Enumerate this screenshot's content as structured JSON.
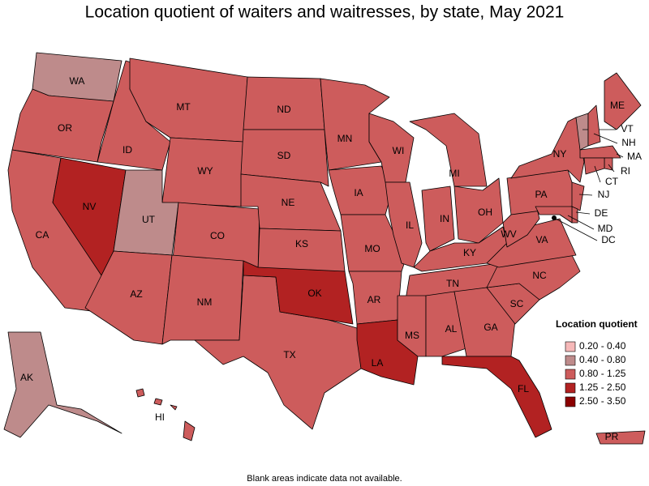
{
  "title": "Location quotient of waiters and waitresses, by state, May 2021",
  "footnote": "Blank areas indicate data not available.",
  "legend": {
    "title": "Location quotient",
    "items": [
      {
        "label": "0.20 - 0.40",
        "color": "#f6b8b8"
      },
      {
        "label": "0.40 - 0.80",
        "color": "#be8b8b"
      },
      {
        "label": "0.80 - 1.25",
        "color": "#cd5c5c"
      },
      {
        "label": "1.25 - 2.50",
        "color": "#b22222"
      },
      {
        "label": "2.50 - 3.50",
        "color": "#8b0000"
      }
    ]
  },
  "states": [
    {
      "label": "WA",
      "color": "#be8b8b"
    },
    {
      "label": "OR",
      "color": "#cd5c5c"
    },
    {
      "label": "CA",
      "color": "#cd5c5c"
    },
    {
      "label": "NV",
      "color": "#b22222"
    },
    {
      "label": "ID",
      "color": "#cd5c5c"
    },
    {
      "label": "MT",
      "color": "#cd5c5c"
    },
    {
      "label": "WY",
      "color": "#cd5c5c"
    },
    {
      "label": "UT",
      "color": "#be8b8b"
    },
    {
      "label": "CO",
      "color": "#cd5c5c"
    },
    {
      "label": "AZ",
      "color": "#cd5c5c"
    },
    {
      "label": "NM",
      "color": "#cd5c5c"
    },
    {
      "label": "ND",
      "color": "#cd5c5c"
    },
    {
      "label": "SD",
      "color": "#cd5c5c"
    },
    {
      "label": "NE",
      "color": "#cd5c5c"
    },
    {
      "label": "KS",
      "color": "#cd5c5c"
    },
    {
      "label": "TX",
      "color": "#cd5c5c"
    },
    {
      "label": "OK",
      "color": "#b22222"
    },
    {
      "label": "MN",
      "color": "#cd5c5c"
    },
    {
      "label": "IA",
      "color": "#cd5c5c"
    },
    {
      "label": "MO",
      "color": "#cd5c5c"
    },
    {
      "label": "AR",
      "color": "#cd5c5c"
    },
    {
      "label": "LA",
      "color": "#b22222"
    },
    {
      "label": "WI",
      "color": "#cd5c5c"
    },
    {
      "label": "IL",
      "color": "#cd5c5c"
    },
    {
      "label": "MI",
      "color": "#cd5c5c"
    },
    {
      "label": "IN",
      "color": "#cd5c5c"
    },
    {
      "label": "OH",
      "color": "#cd5c5c"
    },
    {
      "label": "KY",
      "color": "#cd5c5c"
    },
    {
      "label": "TN",
      "color": "#cd5c5c"
    },
    {
      "label": "MS",
      "color": "#cd5c5c"
    },
    {
      "label": "AL",
      "color": "#cd5c5c"
    },
    {
      "label": "GA",
      "color": "#cd5c5c"
    },
    {
      "label": "FL",
      "color": "#b22222"
    },
    {
      "label": "SC",
      "color": "#cd5c5c"
    },
    {
      "label": "NC",
      "color": "#cd5c5c"
    },
    {
      "label": "VA",
      "color": "#cd5c5c"
    },
    {
      "label": "WV",
      "color": "#cd5c5c"
    },
    {
      "label": "PA",
      "color": "#cd5c5c"
    },
    {
      "label": "NY",
      "color": "#cd5c5c"
    },
    {
      "label": "ME",
      "color": "#cd5c5c"
    },
    {
      "label": "VT",
      "color": "#be8b8b"
    },
    {
      "label": "NH",
      "color": "#cd5c5c"
    },
    {
      "label": "MA",
      "color": "#cd5c5c"
    },
    {
      "label": "RI",
      "color": "#cd5c5c"
    },
    {
      "label": "CT",
      "color": "#cd5c5c"
    },
    {
      "label": "NJ",
      "color": "#cd5c5c"
    },
    {
      "label": "DE",
      "color": "#cd5c5c"
    },
    {
      "label": "MD",
      "color": "#cd5c5c"
    },
    {
      "label": "DC",
      "color": "#cd5c5c"
    },
    {
      "label": "AK",
      "color": "#be8b8b"
    },
    {
      "label": "HI",
      "color": "#cd5c5c"
    },
    {
      "label": "PR",
      "color": "#cd5c5c"
    }
  ]
}
